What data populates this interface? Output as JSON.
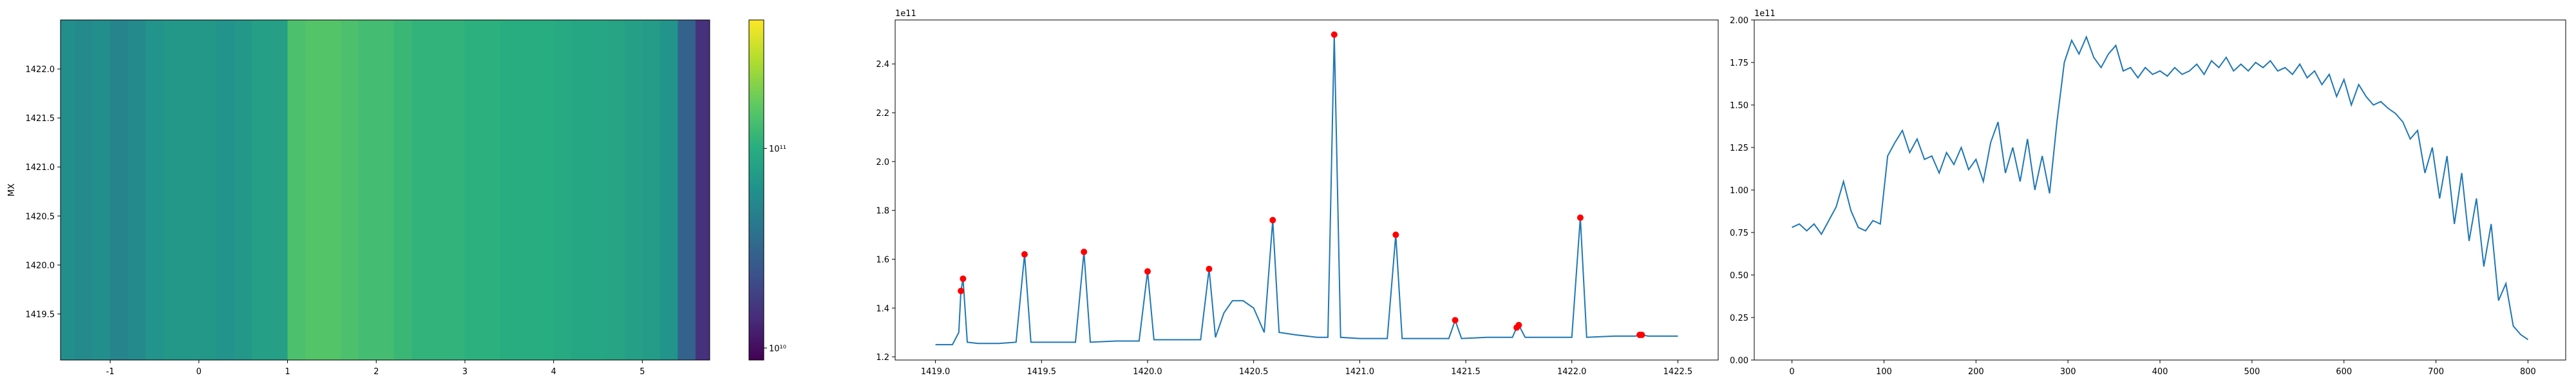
{
  "chart_data": [
    {
      "type": "heatmap",
      "ylabel": "MX",
      "colormap": "viridis",
      "x": [
        -1.5,
        -1.3,
        -1.1,
        -0.9,
        -0.7,
        -0.5,
        -0.3,
        -0.1,
        0.1,
        0.3,
        0.5,
        0.7,
        0.9,
        1.1,
        1.3,
        1.5,
        1.7,
        1.9,
        2.1,
        2.3,
        2.5,
        2.7,
        2.9,
        3.1,
        3.3,
        3.5,
        3.7,
        3.9,
        4.1,
        4.3,
        4.5,
        4.7,
        4.9,
        5.1,
        5.3,
        5.5,
        5.7
      ],
      "values": [
        60000000000.0,
        55000000000.0,
        60000000000.0,
        50000000000.0,
        55000000000.0,
        65000000000.0,
        70000000000.0,
        70000000000.0,
        70000000000.0,
        65000000000.0,
        70000000000.0,
        80000000000.0,
        80000000000.0,
        140000000000.0,
        150000000000.0,
        150000000000.0,
        140000000000.0,
        130000000000.0,
        130000000000.0,
        120000000000.0,
        110000000000.0,
        110000000000.0,
        110000000000.0,
        105000000000.0,
        105000000000.0,
        100000000000.0,
        100000000000.0,
        100000000000.0,
        95000000000.0,
        90000000000.0,
        90000000000.0,
        85000000000.0,
        80000000000.0,
        75000000000.0,
        65000000000.0,
        30000000000.0,
        15000000000.0
      ],
      "xlim": [
        -1.56,
        5.76
      ],
      "ylim": [
        1419.03,
        1422.5
      ],
      "xticks": [
        -1,
        0,
        1,
        2,
        3,
        4,
        5
      ],
      "yticks": [
        1419.5,
        {
          "value": 1420,
          "label": "1420.0"
        },
        1420.5,
        {
          "value": 1421,
          "label": "1421.0"
        },
        1421.5,
        {
          "value": 1422,
          "label": "1422.0"
        }
      ],
      "colorbar": {
        "log": true,
        "clim": [
          8700000000.0,
          440000000000.0
        ],
        "ticks": [
          {
            "value": 10000000000.0,
            "label": "10¹⁰"
          },
          {
            "value": 100000000000.0,
            "label": "10¹¹"
          }
        ]
      }
    },
    {
      "type": "line",
      "offset_text": "1e11",
      "xlim": [
        1418.81,
        1422.69
      ],
      "ylim": [
        1.187,
        2.58
      ],
      "xticks": [
        {
          "value": 1419,
          "label": "1419.0"
        },
        1419.5,
        {
          "value": 1420,
          "label": "1420.0"
        },
        1420.5,
        {
          "value": 1421,
          "label": "1421.0"
        },
        1421.5,
        {
          "value": 1422,
          "label": "1422.0"
        },
        1422.5
      ],
      "yticks": [
        1.2,
        1.4,
        1.6,
        1.8,
        {
          "value": 2,
          "label": "2.0"
        },
        2.2,
        2.4
      ],
      "series": [
        {
          "style": "line",
          "color": "#1f77b4",
          "x": [
            1419.0,
            1419.08,
            1419.11,
            1419.12,
            1419.13,
            1419.15,
            1419.2,
            1419.3,
            1419.38,
            1419.42,
            1419.45,
            1419.55,
            1419.66,
            1419.7,
            1419.73,
            1419.85,
            1419.96,
            1420.0,
            1420.03,
            1420.15,
            1420.25,
            1420.29,
            1420.32,
            1420.36,
            1420.4,
            1420.45,
            1420.5,
            1420.55,
            1420.59,
            1420.62,
            1420.7,
            1420.8,
            1420.85,
            1420.88,
            1420.91,
            1421.0,
            1421.13,
            1421.17,
            1421.2,
            1421.3,
            1421.42,
            1421.45,
            1421.48,
            1421.6,
            1421.72,
            1421.74,
            1421.75,
            1421.78,
            1421.9,
            1422.0,
            1422.04,
            1422.07,
            1422.2,
            1422.3,
            1422.32,
            1422.33,
            1422.36,
            1422.5
          ],
          "values": [
            1.25,
            1.25,
            1.3,
            1.47,
            1.52,
            1.26,
            1.255,
            1.255,
            1.26,
            1.62,
            1.26,
            1.26,
            1.26,
            1.63,
            1.26,
            1.265,
            1.265,
            1.55,
            1.27,
            1.27,
            1.27,
            1.56,
            1.28,
            1.38,
            1.43,
            1.43,
            1.4,
            1.3,
            1.76,
            1.3,
            1.29,
            1.28,
            1.28,
            2.52,
            1.28,
            1.275,
            1.275,
            1.7,
            1.275,
            1.275,
            1.275,
            1.35,
            1.275,
            1.28,
            1.28,
            1.32,
            1.33,
            1.28,
            1.28,
            1.28,
            1.77,
            1.28,
            1.285,
            1.285,
            1.29,
            1.29,
            1.285,
            1.285
          ]
        },
        {
          "style": "markers",
          "color": "#ff0000",
          "x": [
            1419.12,
            1419.13,
            1419.42,
            1419.7,
            1420.0,
            1420.29,
            1420.59,
            1420.88,
            1421.17,
            1421.45,
            1421.74,
            1421.75,
            1422.04,
            1422.32,
            1422.33
          ],
          "values": [
            1.47,
            1.52,
            1.62,
            1.63,
            1.55,
            1.56,
            1.76,
            2.52,
            1.7,
            1.35,
            1.32,
            1.33,
            1.77,
            1.29,
            1.29
          ]
        }
      ]
    },
    {
      "type": "line",
      "offset_text": "1e11",
      "xlim": [
        -41,
        841
      ],
      "ylim": [
        0,
        2
      ],
      "xticks": [
        0,
        100,
        200,
        300,
        400,
        500,
        600,
        700,
        800
      ],
      "yticks": [
        {
          "value": 0,
          "label": "0.00"
        },
        0.25,
        {
          "value": 0.5,
          "label": "0.50"
        },
        0.75,
        {
          "value": 1,
          "label": "1.00"
        },
        1.25,
        {
          "value": 1.5,
          "label": "1.50"
        },
        1.75,
        {
          "value": 2,
          "label": "2.00"
        }
      ],
      "series": [
        {
          "style": "line",
          "color": "#1f77b4",
          "x": [
            0,
            8,
            16,
            24,
            32,
            40,
            48,
            56,
            64,
            72,
            80,
            88,
            96,
            104,
            112,
            120,
            128,
            136,
            144,
            152,
            160,
            168,
            176,
            184,
            192,
            200,
            208,
            216,
            224,
            232,
            240,
            248,
            256,
            264,
            272,
            280,
            288,
            296,
            304,
            312,
            320,
            328,
            336,
            344,
            352,
            360,
            368,
            376,
            384,
            392,
            400,
            408,
            416,
            424,
            432,
            440,
            448,
            456,
            464,
            472,
            480,
            488,
            496,
            504,
            512,
            520,
            528,
            536,
            544,
            552,
            560,
            568,
            576,
            584,
            592,
            600,
            608,
            616,
            624,
            632,
            640,
            648,
            656,
            664,
            672,
            680,
            688,
            696,
            704,
            712,
            720,
            728,
            736,
            744,
            752,
            760,
            768,
            776,
            784,
            792,
            800
          ],
          "values": [
            0.78,
            0.8,
            0.76,
            0.8,
            0.74,
            0.82,
            0.9,
            1.05,
            0.88,
            0.78,
            0.76,
            0.82,
            0.8,
            1.2,
            1.28,
            1.35,
            1.22,
            1.3,
            1.18,
            1.2,
            1.1,
            1.22,
            1.15,
            1.25,
            1.12,
            1.18,
            1.05,
            1.28,
            1.4,
            1.1,
            1.25,
            1.05,
            1.3,
            1.0,
            1.2,
            0.98,
            1.4,
            1.75,
            1.88,
            1.8,
            1.9,
            1.78,
            1.72,
            1.8,
            1.85,
            1.7,
            1.72,
            1.66,
            1.72,
            1.68,
            1.7,
            1.67,
            1.72,
            1.68,
            1.7,
            1.74,
            1.68,
            1.76,
            1.72,
            1.78,
            1.7,
            1.74,
            1.7,
            1.75,
            1.72,
            1.76,
            1.7,
            1.72,
            1.68,
            1.74,
            1.66,
            1.7,
            1.62,
            1.68,
            1.55,
            1.65,
            1.5,
            1.62,
            1.55,
            1.5,
            1.52,
            1.48,
            1.45,
            1.4,
            1.3,
            1.35,
            1.1,
            1.25,
            0.95,
            1.2,
            0.8,
            1.1,
            0.7,
            0.95,
            0.55,
            0.8,
            0.35,
            0.45,
            0.2,
            0.15,
            0.12
          ]
        }
      ]
    }
  ]
}
